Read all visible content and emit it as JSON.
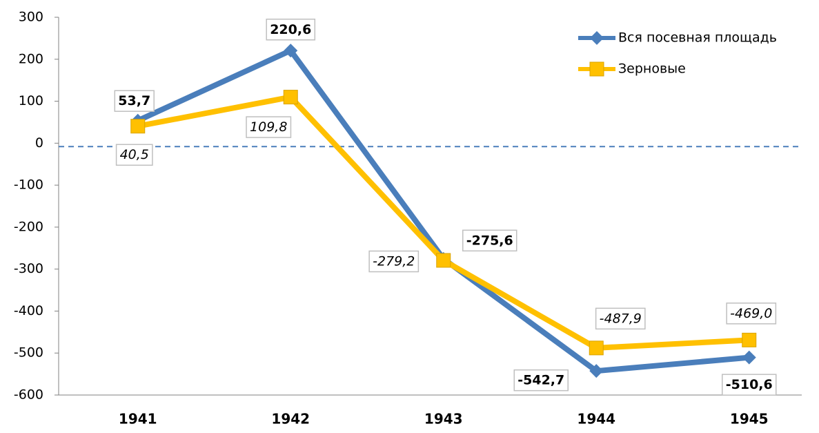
{
  "chart_data": {
    "type": "line",
    "categories": [
      "1941",
      "1942",
      "1943",
      "1944",
      "1945"
    ],
    "series": [
      {
        "name": "Вся посевная площадь",
        "color": "#4a7ebb",
        "values": [
          53.7,
          220.6,
          -275.6,
          -542.7,
          -510.6
        ],
        "value_labels": [
          "53,7",
          "220,6",
          "-275,6",
          "-542,7",
          "-510,6"
        ]
      },
      {
        "name": "Зерновые",
        "color": "#ffc000",
        "values": [
          40.5,
          109.8,
          -279.2,
          -487.9,
          -469.0
        ],
        "value_labels": [
          "40,5",
          "109,8",
          "-279,2",
          "-487,9",
          "-469,0"
        ]
      }
    ],
    "ylim": [
      -600,
      300
    ],
    "yticks": [
      -600,
      -500,
      -400,
      -300,
      -200,
      -100,
      0,
      100,
      200,
      300
    ],
    "reference_line": -8,
    "legend": "top-right"
  }
}
